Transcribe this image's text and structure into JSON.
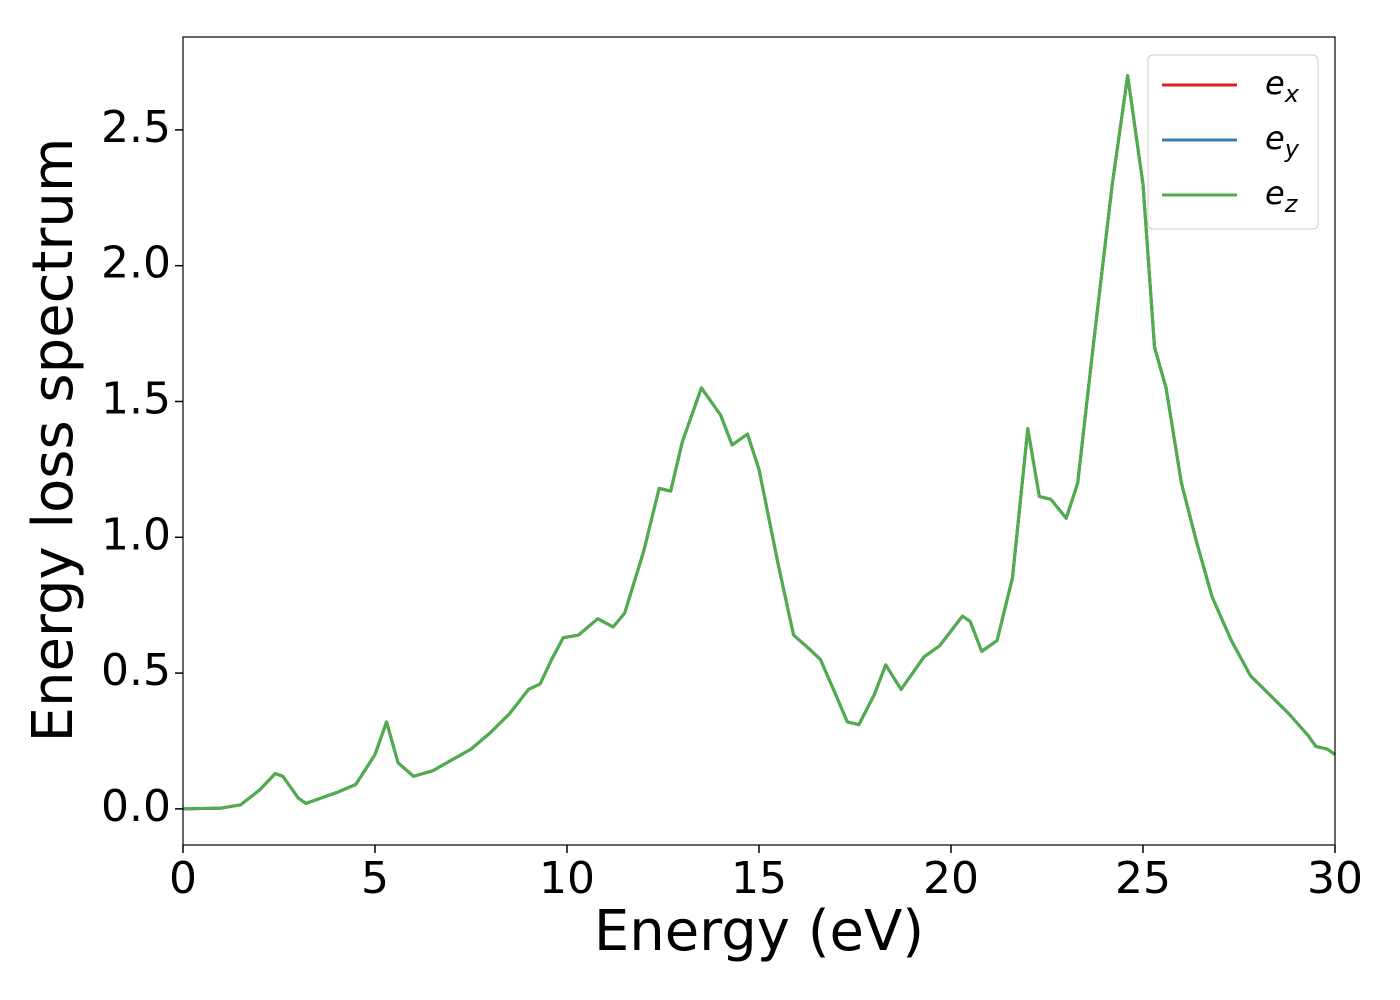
{
  "chart_data": {
    "type": "line",
    "x_label": "Energy (eV)",
    "y_label": "Energy loss spectrum",
    "xlim": [
      0,
      30
    ],
    "ylim": [
      -0.133,
      2.842
    ],
    "xticks": [
      0,
      5,
      10,
      15,
      20,
      25,
      30
    ],
    "yticks": [
      {
        "value": 0,
        "label": "0.0"
      },
      0.5,
      {
        "value": 1,
        "label": "1.0"
      },
      1.5,
      {
        "value": 2,
        "label": "2.0"
      },
      2.5
    ],
    "grid": false,
    "legend": "upper right",
    "x": [
      0,
      1,
      1.5,
      2,
      2.4,
      2.6,
      3,
      3.2,
      3.6,
      4,
      4.5,
      5,
      5.3,
      5.6,
      6,
      6.5,
      7,
      7.5,
      8,
      8.5,
      9,
      9.3,
      9.6,
      9.9,
      10.3,
      10.8,
      11.2,
      11.5,
      12,
      12.4,
      12.7,
      13,
      13.5,
      14,
      14.3,
      14.7,
      15,
      15.5,
      15.9,
      16.3,
      16.6,
      17,
      17.3,
      17.6,
      18,
      18.3,
      18.7,
      19,
      19.3,
      19.7,
      20.3,
      20.5,
      20.8,
      21.2,
      21.6,
      22,
      22.3,
      22.6,
      23,
      23.3,
      23.7,
      24.2,
      24.6,
      25,
      25.3,
      25.6,
      26,
      26.4,
      26.8,
      27.3,
      27.8,
      28.3,
      28.8,
      29.3,
      29.5,
      29.8,
      30
    ],
    "series": [
      {
        "name": "e",
        "subscript": "x",
        "color": "#e41a1c",
        "values": [
          0,
          0.003,
          0.015,
          0.07,
          0.13,
          0.12,
          0.04,
          0.02,
          0.04,
          0.06,
          0.09,
          0.2,
          0.32,
          0.17,
          0.12,
          0.14,
          0.18,
          0.22,
          0.28,
          0.35,
          0.44,
          0.46,
          0.55,
          0.63,
          0.64,
          0.7,
          0.67,
          0.72,
          0.95,
          1.18,
          1.17,
          1.35,
          1.55,
          1.45,
          1.34,
          1.38,
          1.25,
          0.9,
          0.64,
          0.59,
          0.55,
          0.42,
          0.32,
          0.31,
          0.42,
          0.53,
          0.44,
          0.5,
          0.56,
          0.6,
          0.71,
          0.69,
          0.58,
          0.62,
          0.85,
          1.4,
          1.15,
          1.14,
          1.07,
          1.2,
          1.7,
          2.3,
          2.7,
          2.3,
          1.7,
          1.55,
          1.2,
          0.98,
          0.78,
          0.62,
          0.49,
          0.42,
          0.35,
          0.27,
          0.23,
          0.22,
          0.2
        ]
      },
      {
        "name": "e",
        "subscript": "y",
        "color": "#377eb8",
        "values": [
          0,
          0.003,
          0.015,
          0.07,
          0.13,
          0.12,
          0.04,
          0.02,
          0.04,
          0.06,
          0.09,
          0.2,
          0.32,
          0.17,
          0.12,
          0.14,
          0.18,
          0.22,
          0.28,
          0.35,
          0.44,
          0.46,
          0.55,
          0.63,
          0.64,
          0.7,
          0.67,
          0.72,
          0.95,
          1.18,
          1.17,
          1.35,
          1.55,
          1.45,
          1.34,
          1.38,
          1.25,
          0.9,
          0.64,
          0.59,
          0.55,
          0.42,
          0.32,
          0.31,
          0.42,
          0.53,
          0.44,
          0.5,
          0.56,
          0.6,
          0.71,
          0.69,
          0.58,
          0.62,
          0.85,
          1.4,
          1.15,
          1.14,
          1.07,
          1.2,
          1.7,
          2.3,
          2.7,
          2.3,
          1.7,
          1.55,
          1.2,
          0.98,
          0.78,
          0.62,
          0.49,
          0.42,
          0.35,
          0.27,
          0.23,
          0.22,
          0.2
        ]
      },
      {
        "name": "e",
        "subscript": "z",
        "color": "#4daf4a",
        "values": [
          0,
          0.003,
          0.015,
          0.07,
          0.13,
          0.12,
          0.04,
          0.02,
          0.04,
          0.06,
          0.09,
          0.2,
          0.32,
          0.17,
          0.12,
          0.14,
          0.18,
          0.22,
          0.28,
          0.35,
          0.44,
          0.46,
          0.55,
          0.63,
          0.64,
          0.7,
          0.67,
          0.72,
          0.95,
          1.18,
          1.17,
          1.35,
          1.55,
          1.45,
          1.34,
          1.38,
          1.25,
          0.9,
          0.64,
          0.59,
          0.55,
          0.42,
          0.32,
          0.31,
          0.42,
          0.53,
          0.44,
          0.5,
          0.56,
          0.6,
          0.71,
          0.69,
          0.58,
          0.62,
          0.85,
          1.4,
          1.15,
          1.14,
          1.07,
          1.2,
          1.7,
          2.3,
          2.7,
          2.3,
          1.7,
          1.55,
          1.2,
          0.98,
          0.78,
          0.62,
          0.49,
          0.42,
          0.35,
          0.27,
          0.23,
          0.22,
          0.2
        ]
      }
    ]
  }
}
